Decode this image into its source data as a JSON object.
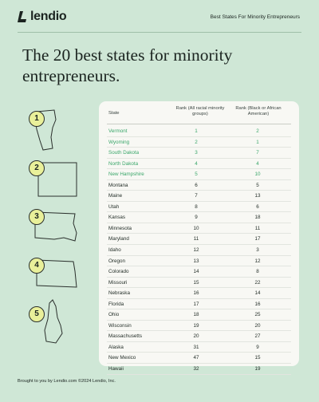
{
  "brand": {
    "name": "lendio",
    "tagline": "Best States For Minority Entrepreneurs"
  },
  "headline": "The 20 best states for minority entrepreneurs.",
  "badges": [
    "1",
    "2",
    "3",
    "4",
    "5"
  ],
  "table": {
    "headers": {
      "state": "State",
      "rank_all": "Rank (All racial minority groups)",
      "rank_black": "Rank (Black or African American)"
    },
    "rows": [
      {
        "state": "Vermont",
        "rank_all": "1",
        "rank_black": "2",
        "highlight": true
      },
      {
        "state": "Wyoming",
        "rank_all": "2",
        "rank_black": "1",
        "highlight": true
      },
      {
        "state": "South Dakota",
        "rank_all": "3",
        "rank_black": "7",
        "highlight": true
      },
      {
        "state": "North Dakota",
        "rank_all": "4",
        "rank_black": "4",
        "highlight": true
      },
      {
        "state": "New Hampshire",
        "rank_all": "5",
        "rank_black": "10",
        "highlight": true
      },
      {
        "state": "Montana",
        "rank_all": "6",
        "rank_black": "5",
        "highlight": false
      },
      {
        "state": "Maine",
        "rank_all": "7",
        "rank_black": "13",
        "highlight": false
      },
      {
        "state": "Utah",
        "rank_all": "8",
        "rank_black": "6",
        "highlight": false
      },
      {
        "state": "Kansas",
        "rank_all": "9",
        "rank_black": "18",
        "highlight": false
      },
      {
        "state": "Minnesota",
        "rank_all": "10",
        "rank_black": "11",
        "highlight": false
      },
      {
        "state": "Maryland",
        "rank_all": "11",
        "rank_black": "17",
        "highlight": false
      },
      {
        "state": "Idaho",
        "rank_all": "12",
        "rank_black": "3",
        "highlight": false
      },
      {
        "state": "Oregon",
        "rank_all": "13",
        "rank_black": "12",
        "highlight": false
      },
      {
        "state": "Colorado",
        "rank_all": "14",
        "rank_black": "8",
        "highlight": false
      },
      {
        "state": "Missouri",
        "rank_all": "15",
        "rank_black": "22",
        "highlight": false
      },
      {
        "state": "Nebraska",
        "rank_all": "16",
        "rank_black": "14",
        "highlight": false
      },
      {
        "state": "Florida",
        "rank_all": "17",
        "rank_black": "16",
        "highlight": false
      },
      {
        "state": "Ohio",
        "rank_all": "18",
        "rank_black": "25",
        "highlight": false
      },
      {
        "state": "Wisconsin",
        "rank_all": "19",
        "rank_black": "20",
        "highlight": false
      },
      {
        "state": "Massachusetts",
        "rank_all": "20",
        "rank_black": "27",
        "highlight": false
      },
      {
        "state": "Alaska",
        "rank_all": "31",
        "rank_black": "9",
        "highlight": false
      },
      {
        "state": "New Mexico",
        "rank_all": "47",
        "rank_black": "15",
        "highlight": false
      },
      {
        "state": "Hawaii",
        "rank_all": "32",
        "rank_black": "19",
        "highlight": false
      }
    ]
  },
  "footer": "Brought to you by Lendio.com ©2024 Lendio, Inc.",
  "colors": {
    "background": "#cfe7d6",
    "highlight": "#3aa66a",
    "badge": "#e9f09a",
    "card": "#f8f8f4"
  }
}
